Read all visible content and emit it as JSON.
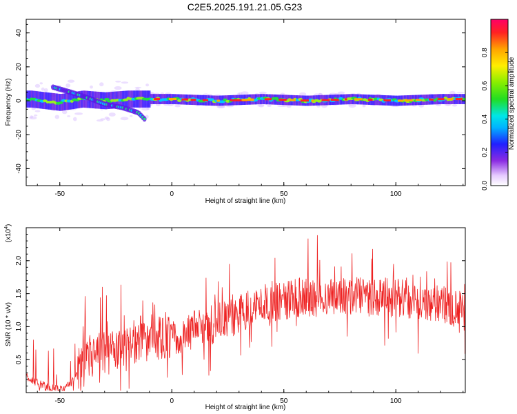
{
  "figure": {
    "title": "C2E5.2025.191.21.05.G23"
  },
  "colorbar": {
    "label": "Normalized spectral amplitude",
    "ticks": [
      "0.0",
      "0.2",
      "0.4",
      "0.6",
      "0.8"
    ],
    "range": [
      0,
      1
    ]
  },
  "chart_data": [
    {
      "type": "heatmap",
      "xlabel": "Height of straight line (km)",
      "ylabel": "Frequency (Hz)",
      "xlim": [
        -65,
        131
      ],
      "ylim": [
        -50,
        48
      ],
      "xticks": [
        "-50",
        "0",
        "50",
        "100"
      ],
      "yticks": [
        "40",
        "20",
        "0",
        "-20",
        "-40"
      ],
      "main_track": [
        [
          -63,
          1
        ],
        [
          -50,
          -1
        ],
        [
          -40,
          1
        ],
        [
          -30,
          0
        ],
        [
          -20,
          1
        ],
        [
          -10,
          1
        ],
        [
          0,
          1
        ],
        [
          20,
          0
        ],
        [
          40,
          1
        ],
        [
          60,
          0
        ],
        [
          80,
          1
        ],
        [
          100,
          0
        ],
        [
          120,
          1
        ],
        [
          131,
          1
        ]
      ],
      "secondary_track": [
        [
          -53,
          8
        ],
        [
          -45,
          5
        ],
        [
          -38,
          2
        ],
        [
          -30,
          -2
        ],
        [
          -22,
          -4
        ],
        [
          -15,
          -7
        ],
        [
          -12,
          -11
        ]
      ]
    },
    {
      "type": "line",
      "xlabel": "Height of straight line (km)",
      "ylabel": "SNR (10 * v/v)",
      "y_multiplier_label": "(x10",
      "y_multiplier_exp": "4",
      "xlim": [
        -65,
        131
      ],
      "ylim": [
        0,
        2.5
      ],
      "xticks": [
        "-50",
        "0",
        "50",
        "100"
      ],
      "yticks": [
        "2.0",
        "1.5",
        "1.0",
        "0.5"
      ],
      "line_color": "#ee2222",
      "envelope_x": [
        -65,
        -60,
        -55,
        -50,
        -45,
        -42,
        -38,
        -30,
        -20,
        -15,
        -10,
        -5,
        0,
        5,
        10,
        20,
        30,
        40,
        50,
        60,
        70,
        80,
        90,
        100,
        110,
        120,
        125,
        131
      ],
      "envelope_y": [
        0.25,
        0.15,
        0.08,
        0.05,
        0.12,
        0.3,
        0.5,
        0.6,
        0.62,
        0.85,
        0.75,
        0.85,
        0.8,
        0.8,
        0.95,
        1.05,
        1.2,
        1.35,
        1.4,
        1.45,
        1.45,
        1.45,
        1.45,
        1.45,
        1.4,
        1.35,
        1.3,
        1.2
      ]
    }
  ]
}
